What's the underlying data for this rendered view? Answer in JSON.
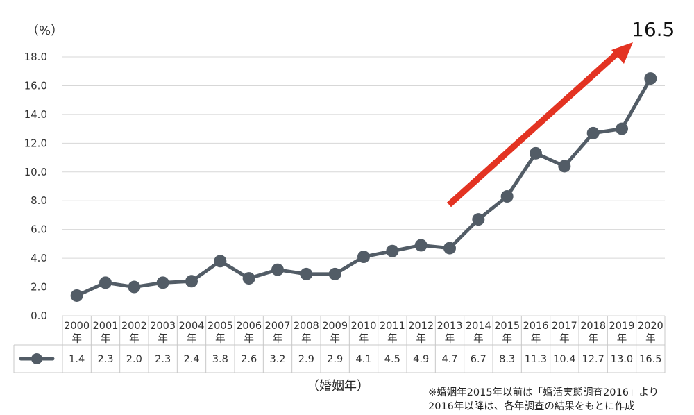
{
  "chart_data": {
    "type": "line",
    "y_unit": "（%）",
    "ylim": [
      0,
      18
    ],
    "y_ticks": [
      "0.0",
      "2.0",
      "4.0",
      "6.0",
      "8.0",
      "10.0",
      "12.0",
      "14.0",
      "16.0",
      "18.0"
    ],
    "categories": [
      [
        "2000",
        "年"
      ],
      [
        "2001",
        "年"
      ],
      [
        "2002",
        "年"
      ],
      [
        "2003",
        "年"
      ],
      [
        "2004",
        "年"
      ],
      [
        "2005",
        "年"
      ],
      [
        "2006",
        "年"
      ],
      [
        "2007",
        "年"
      ],
      [
        "2008",
        "年"
      ],
      [
        "2009",
        "年"
      ],
      [
        "2010",
        "年"
      ],
      [
        "2011",
        "年"
      ],
      [
        "2012",
        "年"
      ],
      [
        "2013",
        "年"
      ],
      [
        "2014",
        "年"
      ],
      [
        "2015",
        "年"
      ],
      [
        "2016",
        "年"
      ],
      [
        "2017",
        "年"
      ],
      [
        "2018",
        "年"
      ],
      [
        "2019",
        "年"
      ],
      [
        "2020",
        "年"
      ]
    ],
    "series": [
      {
        "values": [
          1.4,
          2.3,
          2.0,
          2.3,
          2.4,
          3.8,
          2.6,
          3.2,
          2.9,
          2.9,
          4.1,
          4.5,
          4.9,
          4.7,
          6.7,
          8.3,
          11.3,
          10.4,
          12.7,
          13.0,
          16.5
        ],
        "labels": [
          "1.4",
          "2.3",
          "2.0",
          "2.3",
          "2.4",
          "3.8",
          "2.6",
          "3.2",
          "2.9",
          "2.9",
          "4.1",
          "4.5",
          "4.9",
          "4.7",
          "6.7",
          "8.3",
          "11.3",
          "10.4",
          "12.7",
          "13.0",
          "16.5"
        ],
        "color": "#525c66"
      }
    ],
    "callout_value": "16.5",
    "arrow_color": "#e33322",
    "xlabel": "（婚姻年）",
    "notes": [
      "※婚姻年2015年以前は「婚活実態調査2016」より",
      "2016年以降は、各年調査の結果をもとに作成"
    ],
    "grid": true,
    "legend": "data-table"
  }
}
